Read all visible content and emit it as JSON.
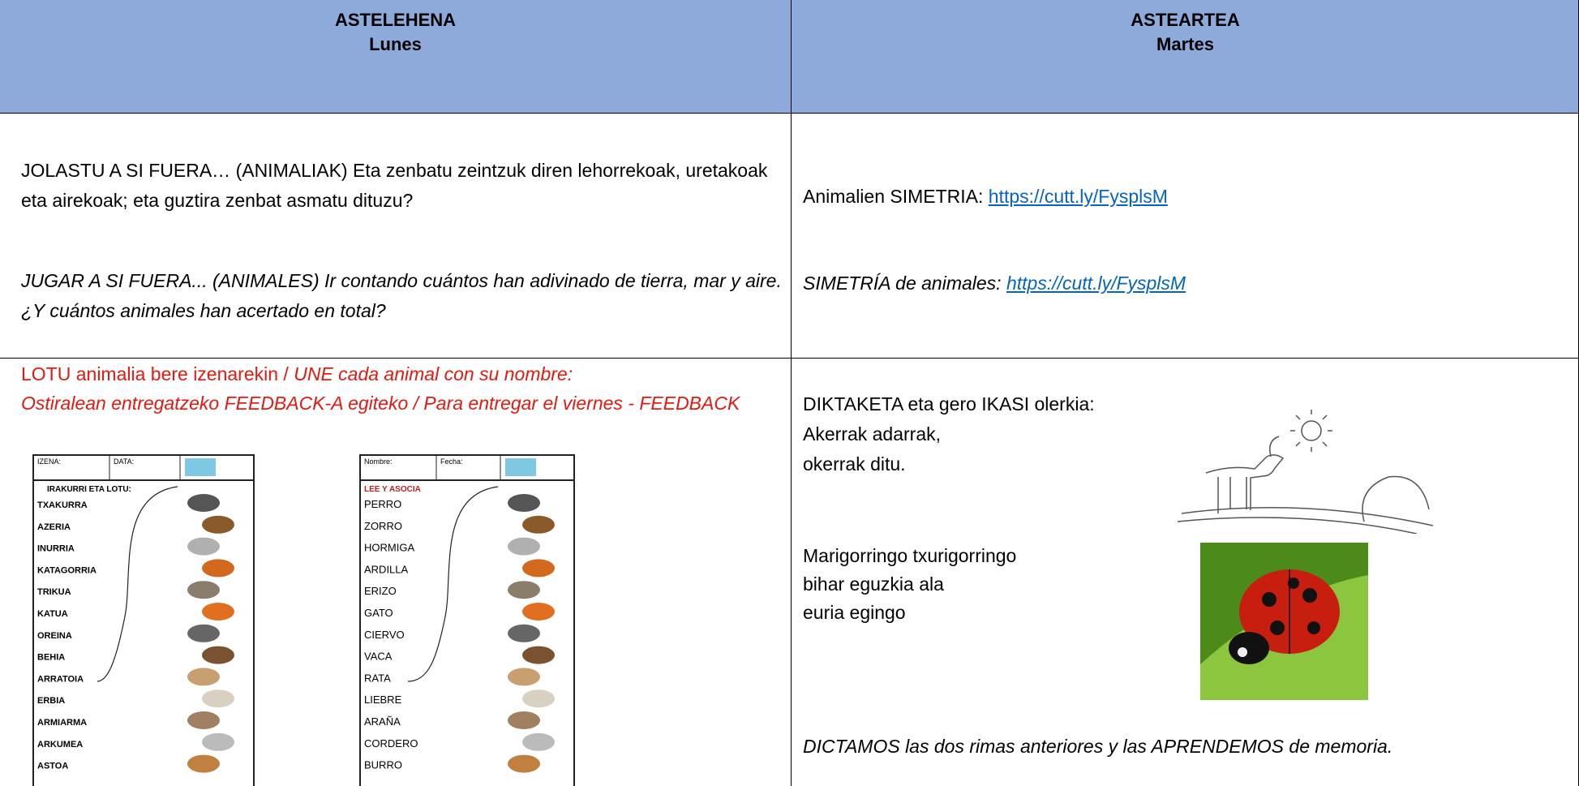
{
  "table": {
    "header": [
      {
        "title": "ASTELEHENA",
        "subtitle": "Lunes"
      },
      {
        "title": "ASTEARTEA",
        "subtitle": "Martes"
      }
    ],
    "rows": [
      [
        {
          "eu": "JOLASTU A SI FUERA… (ANIMALIAK)  Eta zenbatu zeintzuk diren lehorrekoak, uretakoak eta airekoak; eta guztira zenbat asmatu dituzu?",
          "es": "JUGAR A SI FUERA... (ANIMALES) Ir contando cuántos han adivinado de tierra, mar y aire. ¿Y cuántos animales han acertado en total?"
        },
        {
          "eu_label": "Animalien SIMETRIA:",
          "eu_link": "https://cutt.ly/FysplsM",
          "es_label": "SIMETRÍA de animales:",
          "es_link": "https://cutt.ly/FysplsM"
        }
      ],
      [
        {
          "instruction_eu": "LOTU animalia bere izenarekin /",
          "instruction_es": "UNE cada animal con su nombre:",
          "deadline": "Ostiralean entregatzeko FEEDBACK-A egiteko  / Para entregar el viernes - FEEDBACK",
          "worksheets": [
            {
              "name_field": "IZENA:",
              "date_field": "DATA:",
              "heading": "IRAKURRI ETA LOTU:",
              "words": [
                "TXAKURRA",
                "AZERIA",
                "INURRIA",
                "KATAGORRIA",
                "TRIKUA",
                "KATUA",
                "OREINA",
                "BEHIA",
                "ARRATOIA",
                "ERBIA",
                "ARMIARMA",
                "ARKUMEA",
                "ASTOA"
              ]
            },
            {
              "name_field": "Nombre:",
              "date_field": "Fecha:",
              "heading": "LEE Y ASOCIA",
              "words": [
                "PERRO",
                "ZORRO",
                "HORMIGA",
                "ARDILLA",
                "ERIZO",
                "GATO",
                "CIERVO",
                "VACA",
                "RATA",
                "LIEBRE",
                "ARAÑA",
                "CORDERO",
                "BURRO"
              ]
            }
          ]
        },
        {
          "intro": "DIKTAKETA eta gero IKASI olerkia:",
          "poem1": [
            "Akerrak adarrak,",
            "okerrak ditu."
          ],
          "poem2": [
            "Marigorringo txurigorringo",
            "bihar eguzkia ala",
            "euria egingo"
          ],
          "closing": "DICTAMOS las dos rimas anteriores y las APRENDEMOS de memoria."
        }
      ]
    ]
  }
}
